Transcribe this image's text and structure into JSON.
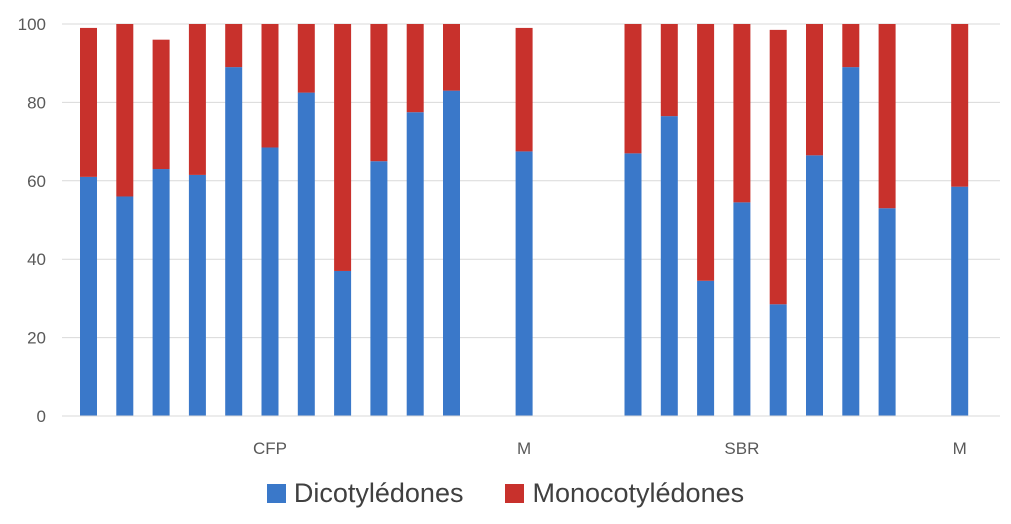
{
  "chart_data": {
    "type": "bar",
    "stacked": true,
    "ylim": [
      0,
      100
    ],
    "yticks": [
      "0",
      "20",
      "40",
      "60",
      "80",
      "100"
    ],
    "grid": true,
    "legend_position": "bottom",
    "group_labels": [
      "CFP",
      "M",
      "SBR",
      "M"
    ],
    "series": [
      {
        "name": "Dicotylédones",
        "color": "#3a78c9",
        "values": [
          61,
          56,
          63,
          61.5,
          89,
          68.5,
          82.5,
          37,
          65,
          77.5,
          83,
          null,
          67.5,
          null,
          null,
          67,
          76.5,
          34.5,
          54.5,
          28.5,
          66.5,
          89,
          53,
          null,
          58.5
        ]
      },
      {
        "name": "Monocotylédones",
        "color": "#c8312c",
        "values": [
          38,
          44,
          33,
          38.5,
          11,
          31.5,
          17.5,
          63,
          35,
          22.5,
          17,
          null,
          31.5,
          null,
          null,
          33,
          23.5,
          65.5,
          45.5,
          70,
          33.5,
          11,
          47,
          null,
          41.5
        ]
      }
    ]
  }
}
